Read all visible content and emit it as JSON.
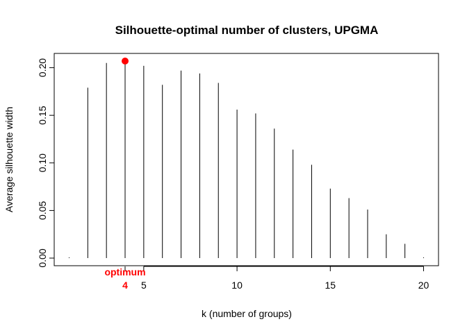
{
  "chart_data": {
    "type": "bar",
    "title": "Silhouette-optimal number of clusters, UPGMA",
    "xlabel": "k (number of groups)",
    "ylabel": "Average silhouette width",
    "x": [
      1,
      2,
      3,
      4,
      5,
      6,
      7,
      8,
      9,
      10,
      11,
      12,
      13,
      14,
      15,
      16,
      17,
      18,
      19,
      20
    ],
    "values": [
      0.0,
      0.179,
      0.205,
      0.207,
      0.202,
      0.182,
      0.197,
      0.194,
      0.184,
      0.156,
      0.152,
      0.136,
      0.114,
      0.098,
      0.073,
      0.063,
      0.051,
      0.025,
      0.015,
      0.0
    ],
    "xlim": [
      0.2,
      20.8
    ],
    "ylim": [
      -0.008,
      0.215
    ],
    "xticks": [
      5,
      10,
      15,
      20
    ],
    "yticks": [
      0.0,
      0.05,
      0.1,
      0.15,
      0.2
    ],
    "ytick_labels": [
      "0.00",
      "0.05",
      "0.10",
      "0.15",
      "0.20"
    ],
    "grid": false,
    "optimum": {
      "k": 4,
      "value": 0.207,
      "label": "optimum",
      "k_label": "4",
      "color": "#ff0000"
    },
    "bar_color": "#000000"
  }
}
